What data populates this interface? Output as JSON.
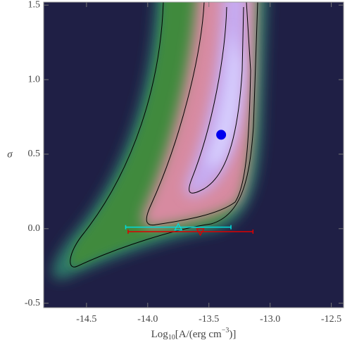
{
  "chart_data": {
    "type": "scatter",
    "xlabel": [
      "Log",
      "10",
      "[A/(erg cm",
      "−3",
      ")]"
    ],
    "ylabel": "σ",
    "xlim": [
      -14.85,
      -12.4
    ],
    "ylim": [
      -0.53,
      1.52
    ],
    "xticks": [
      -14.5,
      {
        "value": -14,
        "label": "-14.0"
      },
      -13.5,
      {
        "value": -13,
        "label": "-13.0"
      },
      -12.5
    ],
    "yticks": [
      -0.5,
      {
        "value": 0,
        "label": "0.0"
      },
      0.5,
      {
        "value": 1,
        "label": "1.0"
      },
      1.5
    ],
    "series": [
      {
        "color": "#0000ee",
        "marker": "circle",
        "x": [
          -13.4
        ],
        "values": [
          0.63
        ]
      },
      {
        "color": "#00dddd",
        "marker": "triangle-up",
        "x": [
          -13.75
        ],
        "values": [
          0.01
        ],
        "xerr": [
          [
            0.43,
            0.43
          ]
        ]
      },
      {
        "color": "#dd0000",
        "marker": "triangle-down",
        "x": [
          -13.57
        ],
        "values": [
          -0.02
        ],
        "xerr": [
          [
            0.59,
            0.43
          ]
        ]
      }
    ]
  }
}
